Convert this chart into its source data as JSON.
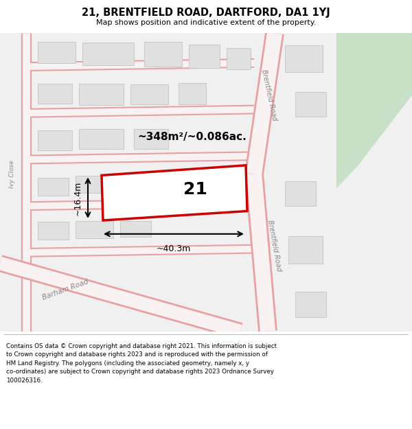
{
  "title": "21, BRENTFIELD ROAD, DARTFORD, DA1 1YJ",
  "subtitle": "Map shows position and indicative extent of the property.",
  "footer": "Contains OS data © Crown copyright and database right 2021. This information is subject\nto Crown copyright and database rights 2023 and is reproduced with the permission of\nHM Land Registry. The polygons (including the associated geometry, namely x, y\nco-ordinates) are subject to Crown copyright and database rights 2023 Ordnance Survey\n100026316.",
  "bg_color": "#f0f0f0",
  "road_color": "#e8a0a0",
  "road_fill": "#f8f2f2",
  "building_fill": "#e0e0e0",
  "building_edge": "#c8c8c8",
  "highlight_fill": "#ffffff",
  "highlight_edge": "#cc0000",
  "green_color": "#c8e0c8",
  "property_label": "21",
  "area_label": "~348m²/~0.086ac.",
  "width_label": "~40.3m",
  "height_label": "~16.4m",
  "road_label_upper": "Brentfield Road",
  "road_label_lower": "Brentfield Road",
  "road_label_ivy": "Ivy Close",
  "road_label_barham": "Barham Road"
}
